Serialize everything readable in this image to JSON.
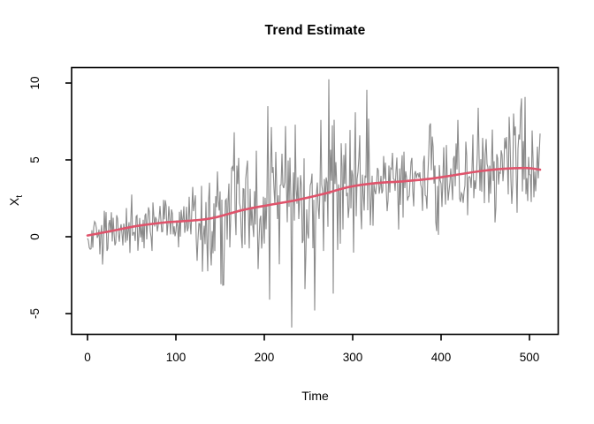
{
  "window": {
    "background": "#ffffff"
  },
  "chart_data": {
    "type": "line",
    "title": "Trend Estimate",
    "xlabel": "Time",
    "ylabel": "Xt",
    "ylabel_base": "X",
    "ylabel_sub": "t",
    "x_ticks": [
      0,
      100,
      200,
      300,
      400,
      500
    ],
    "y_ticks": [
      -5,
      0,
      5,
      10
    ],
    "xlim": [
      -20.5,
      532.5
    ],
    "ylim": [
      -6.35,
      11.0
    ],
    "n_points": 513,
    "grid": false,
    "legend": null,
    "colors": {
      "series": "#8a8a8a",
      "trend": "#DF536B",
      "axis": "#000000",
      "text": "#000000",
      "background": "#ffffff"
    },
    "series": [
      {
        "name": "observed",
        "style": "noisy-line",
        "color": "#8a8a8a"
      },
      {
        "name": "trend estimate",
        "style": "smooth-line",
        "color": "#DF536B"
      }
    ],
    "trend_points": [
      [
        0,
        0.08
      ],
      [
        26,
        0.36
      ],
      [
        56,
        0.7
      ],
      [
        86,
        0.92
      ],
      [
        106,
        1.0
      ],
      [
        131,
        1.12
      ],
      [
        146,
        1.27
      ],
      [
        176,
        1.74
      ],
      [
        206,
        2.07
      ],
      [
        236,
        2.38
      ],
      [
        266,
        2.77
      ],
      [
        296,
        3.24
      ],
      [
        326,
        3.49
      ],
      [
        356,
        3.6
      ],
      [
        386,
        3.76
      ],
      [
        416,
        4.02
      ],
      [
        446,
        4.28
      ],
      [
        471,
        4.42
      ],
      [
        496,
        4.47
      ],
      [
        512,
        4.36
      ]
    ],
    "series_spikes": [
      [
        0,
        -0.1
      ],
      [
        14,
        -1.15
      ],
      [
        21,
        1.6
      ],
      [
        166,
        6.8
      ],
      [
        204,
        8.5
      ],
      [
        206,
        -4.1
      ],
      [
        224,
        7.2
      ],
      [
        231,
        -5.9
      ],
      [
        246,
        -3.4
      ],
      [
        257,
        -4.8
      ],
      [
        264,
        7.6
      ],
      [
        273,
        10.25
      ],
      [
        278,
        -3.7
      ],
      [
        303,
        8.1
      ],
      [
        477,
        7.8
      ],
      [
        495,
        9.1
      ]
    ],
    "noise_sd_profile": [
      [
        0,
        0.85
      ],
      [
        90,
        0.95
      ],
      [
        130,
        1.3
      ],
      [
        155,
        2.0
      ],
      [
        310,
        2.0
      ],
      [
        340,
        1.6
      ],
      [
        460,
        1.5
      ],
      [
        512,
        1.6
      ]
    ],
    "random_seed": 1337,
    "observed_max": 10.25,
    "observed_min": -5.9
  }
}
